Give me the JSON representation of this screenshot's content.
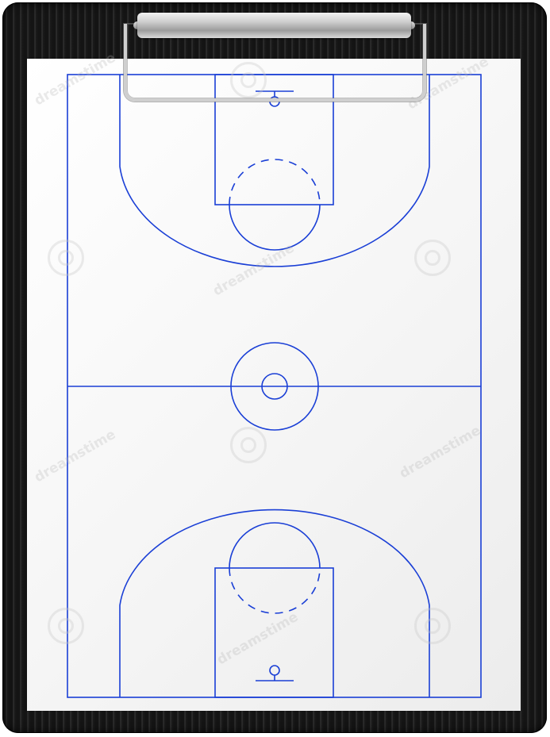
{
  "image": {
    "subject": "clipboard",
    "court_line_color": "#1a3fd6",
    "board_color": "#1a1a1a",
    "paper_color": "#ffffff",
    "clip_color": "#cfcfcf"
  },
  "watermarks": [
    {
      "text": "dreamstime"
    },
    {
      "text": "dreamstime"
    },
    {
      "text": "dreamstime"
    },
    {
      "text": "dreamstime"
    },
    {
      "text": "dreamstime"
    },
    {
      "text": "dreamstime"
    }
  ]
}
